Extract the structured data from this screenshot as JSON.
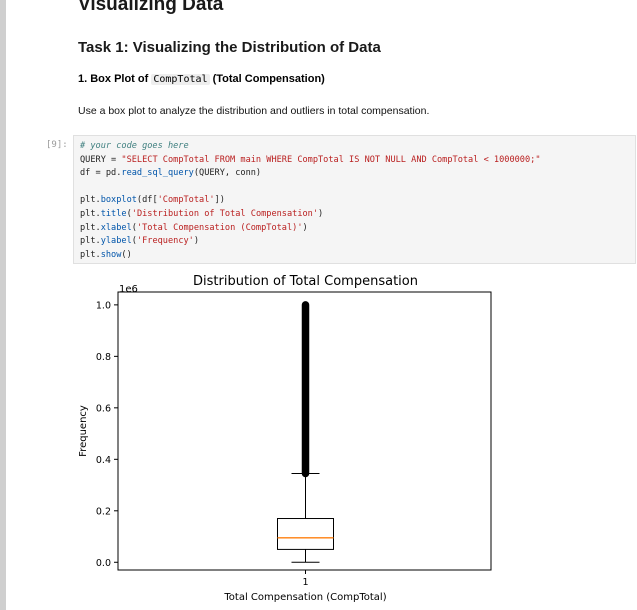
{
  "notebook": {
    "heading": "Visualizing Data",
    "task_heading": "Task 1: Visualizing the Distribution of Data",
    "subheading": {
      "prefix": "1. Box Plot of",
      "code": "CompTotal",
      "suffix": "(Total Compensation)"
    },
    "instruction": "Use a box plot to analyze the distribution and outliers in total compensation.",
    "cell_prompt": "[9]:",
    "code": {
      "comment": "# your code goes here",
      "line_query_prefix": "QUERY = ",
      "line_query_string": "\"SELECT CompTotal FROM main WHERE CompTotal IS NOT NULL AND CompTotal < 1000000;\"",
      "line_df_prefix": "df = pd.",
      "line_df_func": "read_sql_query",
      "line_df_suffix": "(QUERY, conn)",
      "line_box_prefix": "plt.",
      "line_box_func": "boxplot",
      "line_box_mid": "(df[",
      "line_box_str": "'CompTotal'",
      "line_box_end": "])",
      "line_title_prefix": "plt.",
      "line_title_func": "title",
      "line_title_str": "'Distribution of Total Compensation'",
      "line_xlabel_prefix": "plt.",
      "line_xlabel_func": "xlabel",
      "line_xlabel_str": "'Total Compensation (CompTotal)'",
      "line_ylabel_prefix": "plt.",
      "line_ylabel_func": "ylabel",
      "line_ylabel_str": "'Frequency'",
      "line_show_prefix": "plt.",
      "line_show_func": "show",
      "line_show_suffix": "()"
    }
  },
  "chart_data": {
    "type": "box",
    "title": "Distribution of Total Compensation",
    "xlabel": "Total Compensation (CompTotal)",
    "ylabel": "Frequency",
    "scale_label": "1e6",
    "ylim": [
      -0.03,
      1.05
    ],
    "yticks": [
      0.0,
      0.2,
      0.4,
      0.6,
      0.8,
      1.0
    ],
    "ytick_labels": [
      "0.0",
      "0.2",
      "0.4",
      "0.6",
      "0.8",
      "1.0"
    ],
    "xticks": [
      1
    ],
    "xtick_labels": [
      "1"
    ],
    "box": {
      "whisker_low": 0.0,
      "q1": 0.05,
      "median": 0.095,
      "q3": 0.17,
      "whisker_high": 0.345,
      "outlier_min": 0.345,
      "outlier_max": 1.0
    },
    "colors": {
      "median": "#ff7f0e",
      "outlier": "#000000"
    }
  }
}
